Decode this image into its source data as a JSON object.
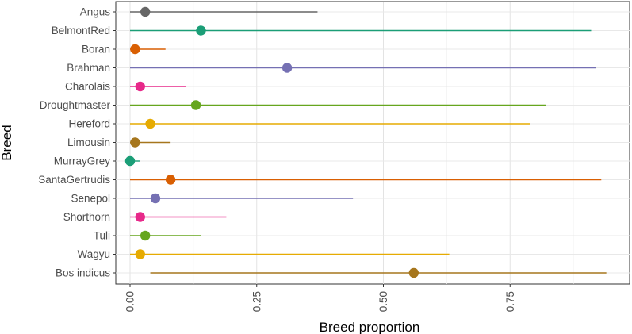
{
  "chart_data": {
    "type": "dot-range",
    "xlabel": "Breed proportion",
    "ylabel": "Breed",
    "xlim": [
      -0.05,
      0.95
    ],
    "x_ticks": [
      0.0,
      0.25,
      0.5,
      0.75
    ],
    "x_tick_labels": [
      "0.00",
      "0.25",
      "0.50",
      "0.75"
    ],
    "x_tick_label_rotation": "vertical",
    "grid": true,
    "legend": "none",
    "categories": [
      "Angus",
      "BelmontRed",
      "Boran",
      "Brahman",
      "Charolais",
      "Droughtmaster",
      "Hereford",
      "Limousin",
      "MurrayGrey",
      "SantaGertrudis",
      "Senepol",
      "Shorthorn",
      "Tuli",
      "Wagyu",
      "Bos indicus"
    ],
    "points": [
      0.03,
      0.14,
      0.01,
      0.31,
      0.02,
      0.13,
      0.04,
      0.01,
      0.0,
      0.08,
      0.05,
      0.02,
      0.03,
      0.02,
      0.56
    ],
    "range_low": [
      0.0,
      0.0,
      0.0,
      0.0,
      0.0,
      0.0,
      0.0,
      0.0,
      0.0,
      0.0,
      0.0,
      0.0,
      0.0,
      0.0,
      0.04
    ],
    "range_high": [
      0.37,
      0.91,
      0.07,
      0.92,
      0.11,
      0.82,
      0.79,
      0.08,
      0.02,
      0.93,
      0.44,
      0.19,
      0.14,
      0.63,
      0.94
    ],
    "colors": [
      "#666666",
      "#1b9e77",
      "#d95f02",
      "#7570b3",
      "#e7298a",
      "#66a61e",
      "#e6ab02",
      "#a6761d",
      "#1b9e77",
      "#d95f02",
      "#7570b3",
      "#e7298a",
      "#66a61e",
      "#e6ab02",
      "#a6761d"
    ]
  }
}
